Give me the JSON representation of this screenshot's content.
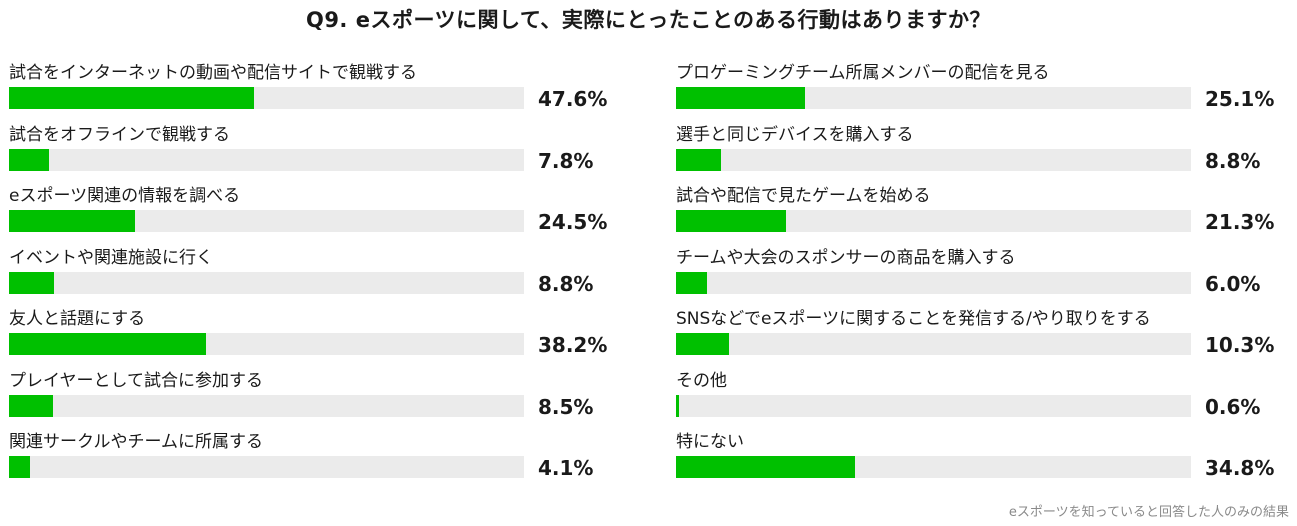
{
  "chart_data": {
    "type": "bar",
    "orientation": "horizontal",
    "title": "Q9. eスポーツに関して、実際にとったことのある行動はありますか？",
    "value_suffix": "%",
    "xlim": [
      0,
      100
    ],
    "note": "eスポーツを知っていると回答した人のみの結果",
    "bar_color": "#00c000",
    "track_color": "#ebebeb",
    "columns": [
      {
        "items": [
          {
            "label": "試合をインターネットの動画や配信サイトで観戦する",
            "value": 47.6,
            "value_label": "47.6%"
          },
          {
            "label": "試合をオフラインで観戦する",
            "value": 7.8,
            "value_label": "7.8%"
          },
          {
            "label": "eスポーツ関連の情報を調べる",
            "value": 24.5,
            "value_label": "24.5%"
          },
          {
            "label": "イベントや関連施設に行く",
            "value": 8.8,
            "value_label": "8.8%"
          },
          {
            "label": "友人と話題にする",
            "value": 38.2,
            "value_label": "38.2%"
          },
          {
            "label": "プレイヤーとして試合に参加する",
            "value": 8.5,
            "value_label": "8.5%"
          },
          {
            "label": "関連サークルやチームに所属する",
            "value": 4.1,
            "value_label": "4.1%"
          }
        ]
      },
      {
        "items": [
          {
            "label": "プロゲーミングチーム所属メンバーの配信を見る",
            "value": 25.1,
            "value_label": "25.1%"
          },
          {
            "label": "選手と同じデバイスを購入する",
            "value": 8.8,
            "value_label": "8.8%"
          },
          {
            "label": "試合や配信で見たゲームを始める",
            "value": 21.3,
            "value_label": "21.3%"
          },
          {
            "label": "チームや大会のスポンサーの商品を購入する",
            "value": 6.0,
            "value_label": "6.0%"
          },
          {
            "label": "SNSなどでeスポーツに関することを発信する/やり取りをする",
            "value": 10.3,
            "value_label": "10.3%"
          },
          {
            "label": "その他",
            "value": 0.6,
            "value_label": "0.6%"
          },
          {
            "label": "特にない",
            "value": 34.8,
            "value_label": "34.8%"
          }
        ]
      }
    ]
  }
}
